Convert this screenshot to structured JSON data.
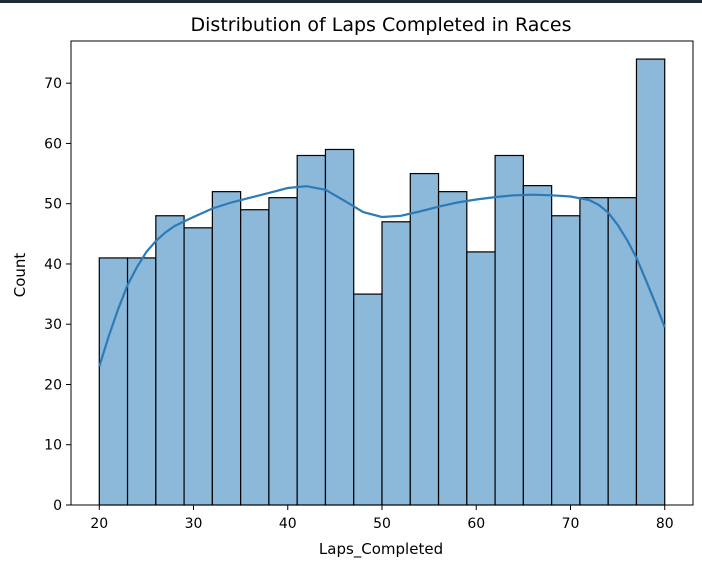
{
  "chart_data": {
    "type": "bar",
    "title": "Distribution of Laps Completed in Races",
    "xlabel": "Laps_Completed",
    "ylabel": "Count",
    "xlim": [
      17,
      83
    ],
    "ylim": [
      0,
      77
    ],
    "xticks": [
      20,
      30,
      40,
      50,
      60,
      70,
      80
    ],
    "yticks": [
      0,
      10,
      20,
      30,
      40,
      50,
      60,
      70
    ],
    "bin_edges": [
      20,
      23,
      26,
      29,
      32,
      35,
      38,
      41,
      44,
      47,
      50,
      53,
      56,
      59,
      62,
      65,
      68,
      71,
      74,
      77,
      80
    ],
    "counts": [
      41,
      41,
      48,
      46,
      52,
      49,
      51,
      58,
      59,
      35,
      47,
      55,
      52,
      42,
      58,
      53,
      48,
      51,
      51,
      74
    ],
    "kde": {
      "x": [
        20,
        21,
        22,
        23,
        24,
        25,
        26,
        27,
        28,
        30,
        32,
        34,
        36,
        38,
        40,
        42,
        44,
        46,
        48,
        50,
        52,
        54,
        56,
        58,
        60,
        62,
        64,
        66,
        68,
        70,
        72,
        73,
        74,
        75,
        76,
        77,
        78,
        79,
        80
      ],
      "y": [
        23,
        28,
        32.5,
        36.5,
        39.5,
        42,
        43.8,
        45.2,
        46.3,
        47.8,
        49.2,
        50.2,
        51,
        51.8,
        52.6,
        52.9,
        52.3,
        50.5,
        48.6,
        47.8,
        48,
        48.7,
        49.5,
        50.2,
        50.7,
        51.1,
        51.4,
        51.5,
        51.4,
        51.2,
        50.6,
        49.8,
        48.5,
        46.5,
        44,
        41,
        37.3,
        33.5,
        29.5
      ]
    },
    "colors": {
      "bar_fill": "#8cb8da",
      "bar_edge": "#000000",
      "kde_line": "#2d7bb6"
    },
    "grid": false
  }
}
